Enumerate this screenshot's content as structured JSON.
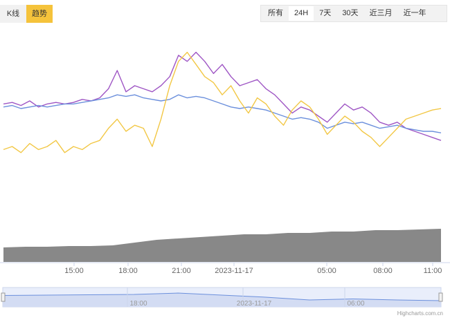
{
  "chart_tabs": [
    {
      "label": "K线",
      "active": false
    },
    {
      "label": "趋势",
      "active": true
    }
  ],
  "range_buttons": [
    {
      "label": "所有",
      "active": false
    },
    {
      "label": "24H",
      "active": true
    },
    {
      "label": "7天",
      "active": false
    },
    {
      "label": "30天",
      "active": false
    },
    {
      "label": "近三月",
      "active": false
    },
    {
      "label": "近一年",
      "active": false
    }
  ],
  "credit": "Highcharts.com.cn",
  "colors": {
    "purple": "#9e55c4",
    "blue": "#6b8fdc",
    "yellow": "#f2c744",
    "volume": "#888888",
    "navigator_fill": "#d3dcf3",
    "navigator_line": "#6b8fdc",
    "tab_active": "#f5c33b"
  },
  "chart_data": {
    "type": "line",
    "x_range": [
      "2023-11-16 12:45",
      "2023-11-17 11:15"
    ],
    "x_tick_labels": [
      "15:00",
      "18:00",
      "21:00",
      "2023-11-17",
      "05:00",
      "08:00",
      "11:00"
    ],
    "y_range": [
      0,
      100
    ],
    "grid": false,
    "series": [
      {
        "color": "purple",
        "points": [
          [
            0,
            58
          ],
          [
            2,
            59
          ],
          [
            4,
            57
          ],
          [
            6,
            60
          ],
          [
            8,
            56
          ],
          [
            10,
            58
          ],
          [
            12,
            59
          ],
          [
            14,
            58
          ],
          [
            16,
            59
          ],
          [
            18,
            61
          ],
          [
            20,
            60
          ],
          [
            22,
            62
          ],
          [
            24,
            68
          ],
          [
            26,
            80
          ],
          [
            28,
            66
          ],
          [
            30,
            70
          ],
          [
            32,
            68
          ],
          [
            34,
            66
          ],
          [
            36,
            70
          ],
          [
            38,
            76
          ],
          [
            40,
            90
          ],
          [
            42,
            86
          ],
          [
            44,
            92
          ],
          [
            46,
            86
          ],
          [
            48,
            78
          ],
          [
            50,
            84
          ],
          [
            52,
            76
          ],
          [
            54,
            70
          ],
          [
            56,
            72
          ],
          [
            58,
            74
          ],
          [
            60,
            68
          ],
          [
            62,
            64
          ],
          [
            64,
            58
          ],
          [
            66,
            52
          ],
          [
            68,
            56
          ],
          [
            70,
            54
          ],
          [
            72,
            50
          ],
          [
            74,
            46
          ],
          [
            76,
            52
          ],
          [
            78,
            58
          ],
          [
            80,
            54
          ],
          [
            82,
            56
          ],
          [
            84,
            52
          ],
          [
            86,
            46
          ],
          [
            88,
            44
          ],
          [
            90,
            46
          ],
          [
            92,
            42
          ],
          [
            94,
            40
          ],
          [
            96,
            38
          ],
          [
            98,
            36
          ],
          [
            100,
            34
          ]
        ]
      },
      {
        "color": "blue",
        "points": [
          [
            0,
            56
          ],
          [
            2,
            57
          ],
          [
            4,
            55
          ],
          [
            6,
            56
          ],
          [
            8,
            57
          ],
          [
            10,
            56
          ],
          [
            12,
            57
          ],
          [
            14,
            58
          ],
          [
            16,
            58
          ],
          [
            18,
            59
          ],
          [
            20,
            60
          ],
          [
            22,
            61
          ],
          [
            24,
            62
          ],
          [
            26,
            64
          ],
          [
            28,
            63
          ],
          [
            30,
            64
          ],
          [
            32,
            62
          ],
          [
            34,
            61
          ],
          [
            36,
            60
          ],
          [
            38,
            61
          ],
          [
            40,
            64
          ],
          [
            42,
            62
          ],
          [
            44,
            63
          ],
          [
            46,
            62
          ],
          [
            48,
            60
          ],
          [
            50,
            58
          ],
          [
            52,
            56
          ],
          [
            54,
            55
          ],
          [
            56,
            56
          ],
          [
            58,
            55
          ],
          [
            60,
            54
          ],
          [
            62,
            52
          ],
          [
            64,
            50
          ],
          [
            66,
            48
          ],
          [
            68,
            49
          ],
          [
            70,
            48
          ],
          [
            72,
            46
          ],
          [
            74,
            42
          ],
          [
            76,
            44
          ],
          [
            78,
            46
          ],
          [
            80,
            45
          ],
          [
            82,
            46
          ],
          [
            84,
            44
          ],
          [
            86,
            42
          ],
          [
            88,
            43
          ],
          [
            90,
            44
          ],
          [
            92,
            42
          ],
          [
            94,
            41
          ],
          [
            96,
            40
          ],
          [
            98,
            40
          ],
          [
            100,
            39
          ]
        ]
      },
      {
        "color": "yellow",
        "points": [
          [
            0,
            28
          ],
          [
            2,
            30
          ],
          [
            4,
            26
          ],
          [
            6,
            32
          ],
          [
            8,
            28
          ],
          [
            10,
            30
          ],
          [
            12,
            34
          ],
          [
            14,
            26
          ],
          [
            16,
            30
          ],
          [
            18,
            28
          ],
          [
            20,
            32
          ],
          [
            22,
            34
          ],
          [
            24,
            42
          ],
          [
            26,
            48
          ],
          [
            28,
            40
          ],
          [
            30,
            44
          ],
          [
            32,
            42
          ],
          [
            34,
            30
          ],
          [
            36,
            48
          ],
          [
            38,
            70
          ],
          [
            40,
            86
          ],
          [
            42,
            92
          ],
          [
            44,
            84
          ],
          [
            46,
            76
          ],
          [
            48,
            72
          ],
          [
            50,
            64
          ],
          [
            52,
            70
          ],
          [
            54,
            60
          ],
          [
            56,
            52
          ],
          [
            58,
            62
          ],
          [
            60,
            58
          ],
          [
            62,
            50
          ],
          [
            64,
            44
          ],
          [
            66,
            54
          ],
          [
            68,
            60
          ],
          [
            70,
            56
          ],
          [
            72,
            48
          ],
          [
            74,
            38
          ],
          [
            76,
            44
          ],
          [
            78,
            50
          ],
          [
            80,
            46
          ],
          [
            82,
            40
          ],
          [
            84,
            36
          ],
          [
            86,
            30
          ],
          [
            88,
            36
          ],
          [
            90,
            42
          ],
          [
            92,
            48
          ],
          [
            94,
            50
          ],
          [
            96,
            52
          ],
          [
            98,
            54
          ],
          [
            100,
            55
          ]
        ]
      },
      {
        "type": "area",
        "color": "volume",
        "points": [
          [
            0,
            21
          ],
          [
            5,
            22
          ],
          [
            10,
            22
          ],
          [
            15,
            23
          ],
          [
            20,
            23
          ],
          [
            25,
            24
          ],
          [
            30,
            28
          ],
          [
            35,
            32
          ],
          [
            40,
            34
          ],
          [
            45,
            36
          ],
          [
            50,
            38
          ],
          [
            55,
            40
          ],
          [
            60,
            40
          ],
          [
            65,
            42
          ],
          [
            70,
            42
          ],
          [
            75,
            44
          ],
          [
            80,
            44
          ],
          [
            85,
            46
          ],
          [
            90,
            46
          ],
          [
            95,
            47
          ],
          [
            100,
            48
          ]
        ]
      }
    ],
    "navigator": {
      "x_tick_labels": [
        "18:00",
        "2023-11-17",
        "06:00"
      ],
      "series": {
        "color": "navigator_line",
        "points": [
          [
            0,
            55
          ],
          [
            10,
            56
          ],
          [
            20,
            57
          ],
          [
            30,
            58
          ],
          [
            40,
            62
          ],
          [
            50,
            56
          ],
          [
            60,
            50
          ],
          [
            70,
            42
          ],
          [
            80,
            45
          ],
          [
            90,
            42
          ],
          [
            100,
            40
          ]
        ]
      }
    }
  }
}
